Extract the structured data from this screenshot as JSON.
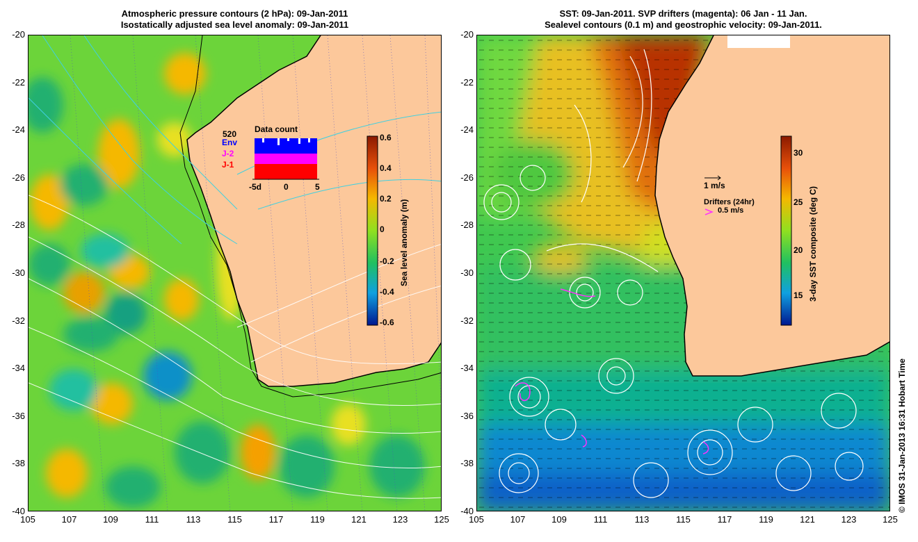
{
  "left_panel": {
    "title_line1": "Atmospheric pressure contours (2 hPa): 09-Jan-2011",
    "title_line2": "Isostatically adjusted sea level anomaly: 09-Jan-2011",
    "colorbar": {
      "label": "Sea level anomaly (m)",
      "ticks": [
        "0.6",
        "0.4",
        "0.2",
        "0",
        "-0.2",
        "-0.4",
        "-0.6"
      ],
      "colors": [
        "#8b1a00",
        "#e8500a",
        "#f5b800",
        "#90e020",
        "#20c060",
        "#10a0e0",
        "#001890"
      ]
    },
    "inset": {
      "title": "Data count",
      "max_label": "520",
      "series": [
        "Env",
        "J-2",
        "J-1"
      ],
      "series_colors": [
        "#0000ff",
        "#ff00ff",
        "#ff0000"
      ],
      "x_ticks": [
        "-5d",
        "0",
        "5"
      ]
    }
  },
  "right_panel": {
    "title_line1": "SST: 09-Jan-2011. SVP drifters (magenta): 06 Jan - 11 Jan.",
    "title_line2": "Sealevel contours (0.1 m) and geostrophic velocity: 09-Jan-2011.",
    "colorbar": {
      "label": "3-day SST composite (deg C)",
      "ticks": [
        "30",
        "25",
        "20",
        "15"
      ],
      "colors": [
        "#8b1a00",
        "#e8500a",
        "#f5b800",
        "#90e020",
        "#20c060",
        "#10a0e0",
        "#001890"
      ]
    },
    "velocity_legend": "1 m/s",
    "drifter_legend_title": "Drifters (24hr)",
    "drifter_legend_value": "0.5 m/s"
  },
  "axes": {
    "lat_ticks": [
      "-20",
      "-22",
      "-24",
      "-26",
      "-28",
      "-30",
      "-32",
      "-34",
      "-36",
      "-38",
      "-40"
    ],
    "lon_ticks": [
      "105",
      "107",
      "109",
      "111",
      "113",
      "115",
      "117",
      "119",
      "121",
      "123",
      "125"
    ]
  },
  "credit": "© IMOS 31-Jan-2013 16:31 Hobart Time",
  "colors": {
    "land": "#fcc89b",
    "frame": "#000000"
  }
}
